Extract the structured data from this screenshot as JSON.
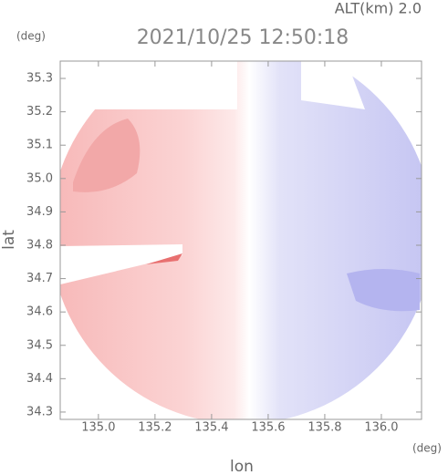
{
  "chart_data": {
    "type": "radar",
    "title": "2021/10/25 12:50:18",
    "subtitle": "ALT(km) 2.0",
    "x_label": "lon",
    "y_label": "lat",
    "x_unit": "(deg)",
    "y_unit": "(deg)",
    "xlim": [
      134.865,
      136.142
    ],
    "ylim": [
      34.278,
      35.352
    ],
    "xticks": [
      {
        "value": 135,
        "label": "135.0"
      },
      135.2,
      135.4,
      135.6,
      135.8,
      {
        "value": 136,
        "label": "136.0"
      }
    ],
    "yticks": [
      34.3,
      34.4,
      34.5,
      34.6,
      34.7,
      34.8,
      34.9,
      {
        "value": 35,
        "label": "35.0"
      },
      35.1,
      35.2,
      35.3
    ]
  }
}
